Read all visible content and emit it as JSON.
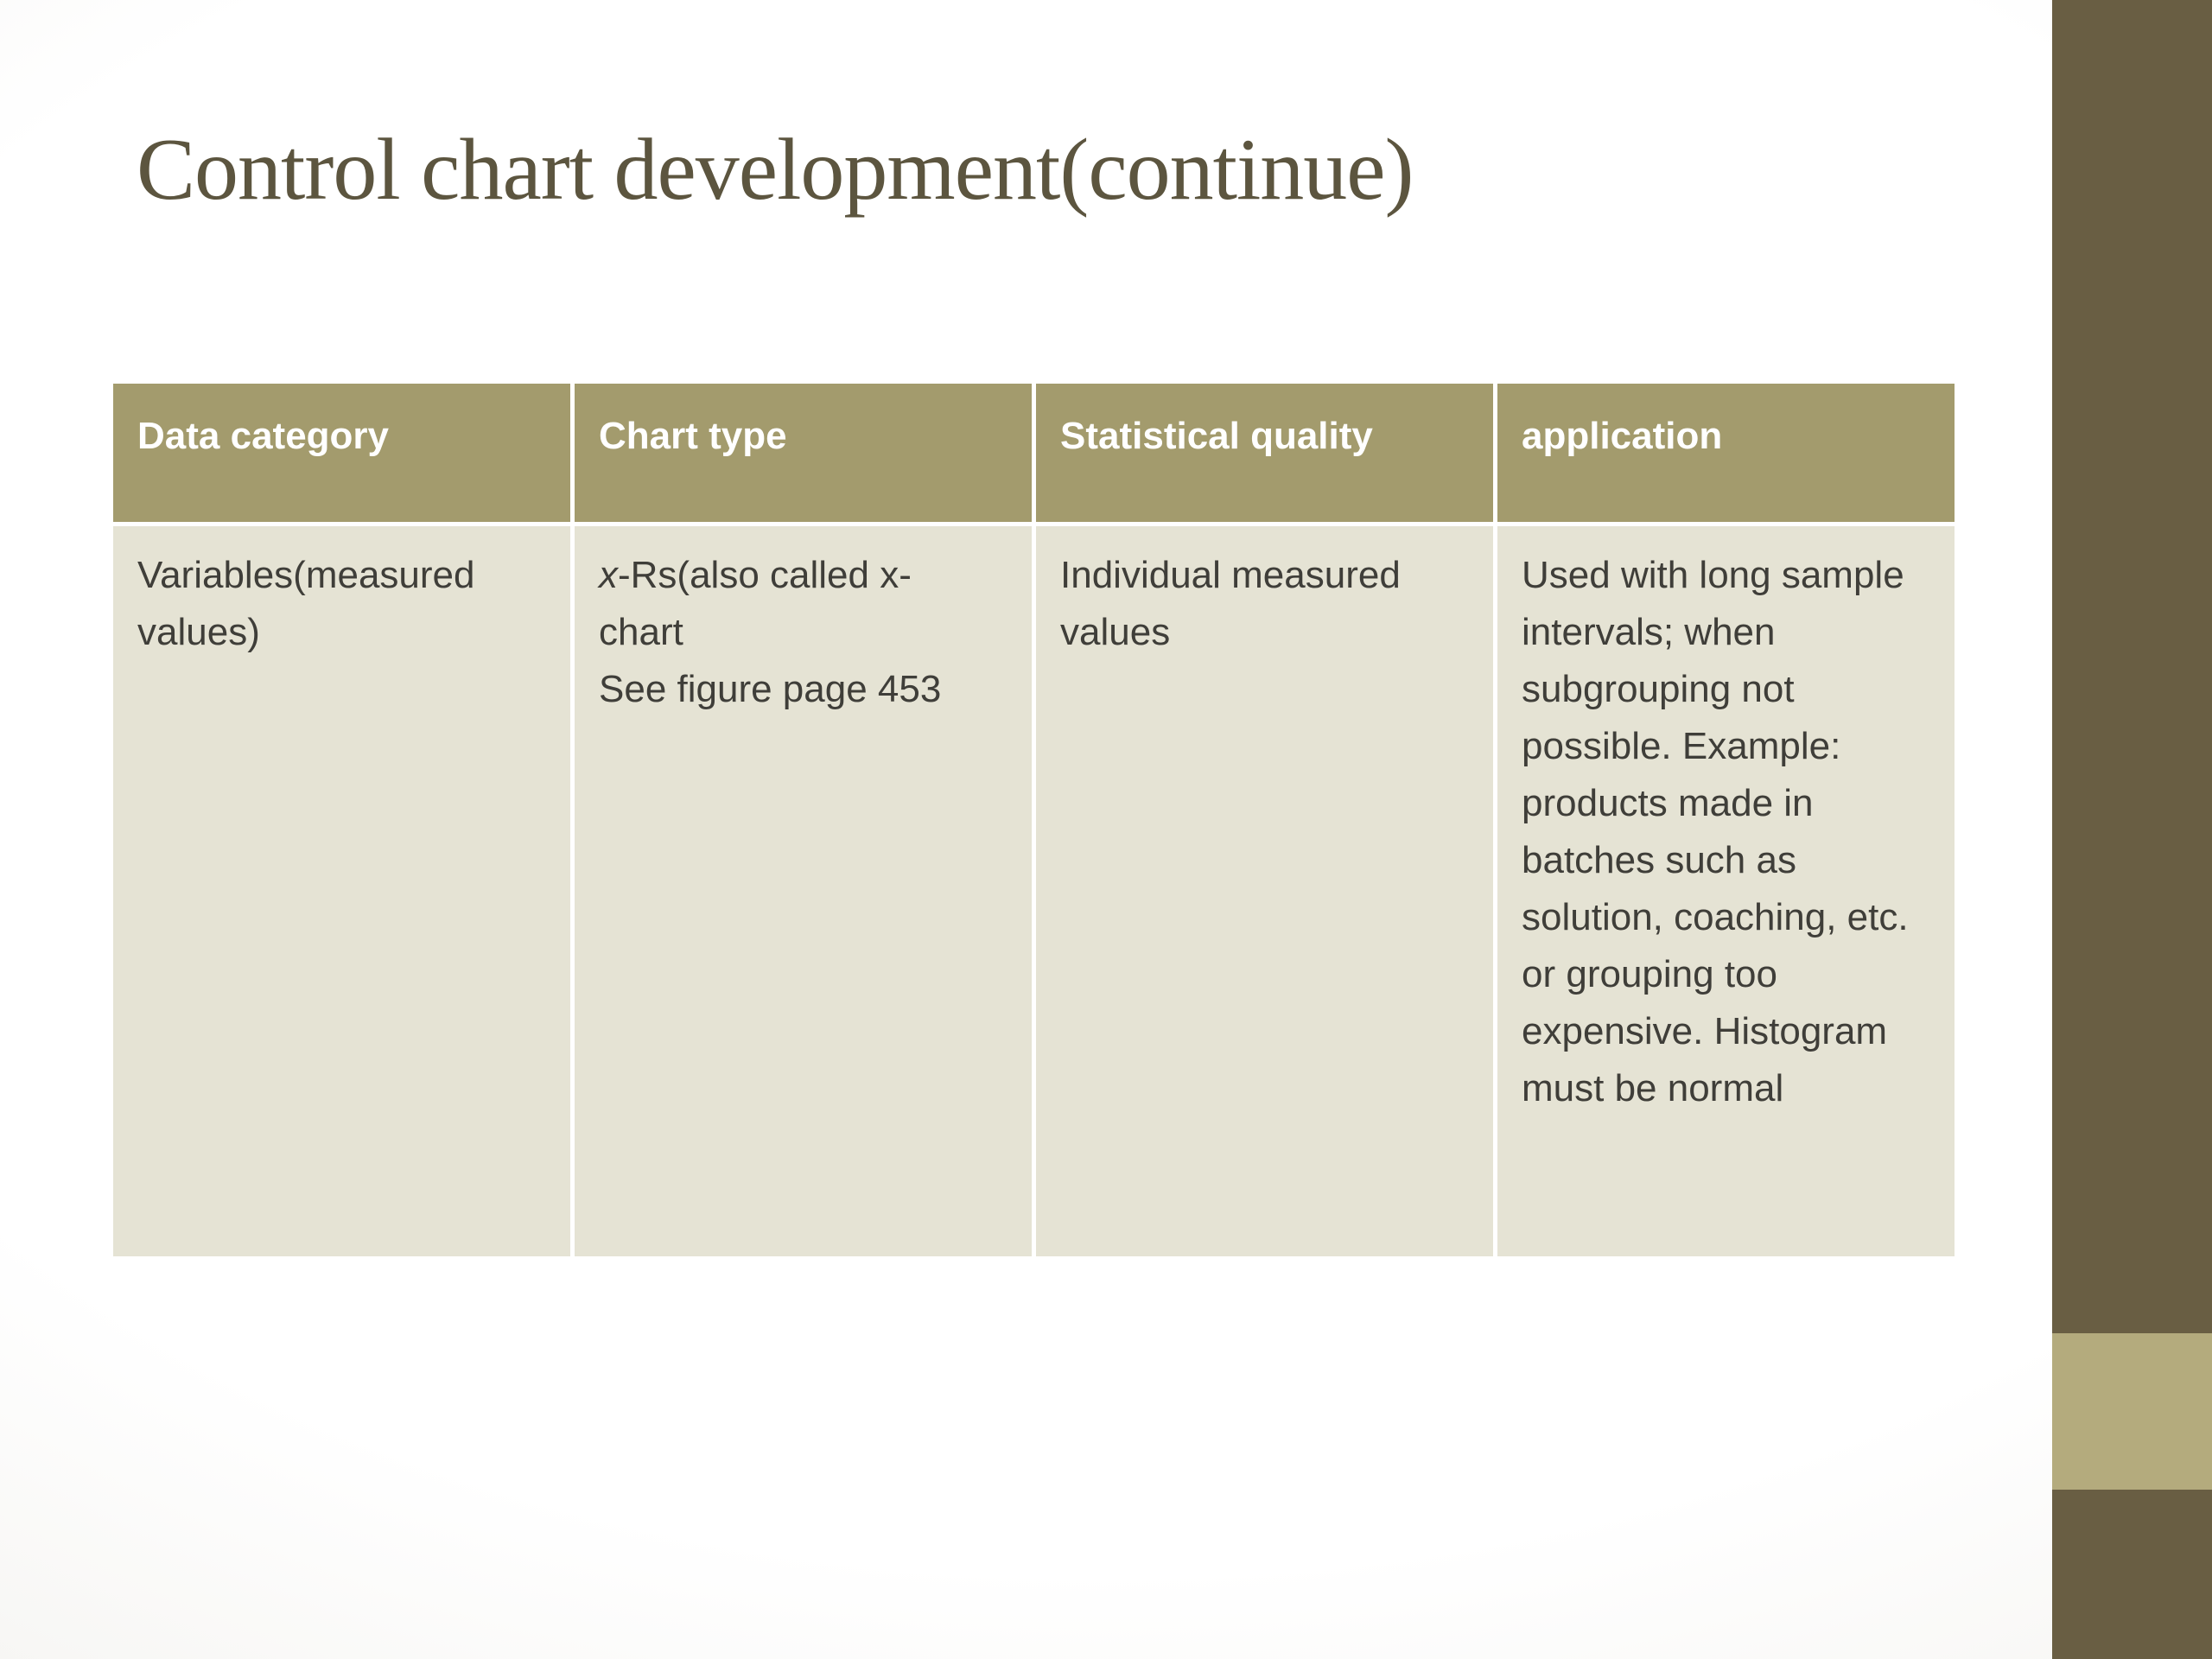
{
  "slide": {
    "title": "Control chart development(continue)"
  },
  "table": {
    "headers": [
      "Data category",
      "Chart type",
      "Statistical quality",
      "application"
    ],
    "rows": [
      {
        "data_category": "Variables(measured values)",
        "chart_type_italic_x": "x",
        "chart_type_line1_rest": "-Rs(also called x-",
        "chart_type_line2": "chart",
        "chart_type_line3": "See figure page 453",
        "statistical_quality": "Individual measured values",
        "application": "Used with long sample intervals; when subgrouping not possible. Example: products made in batches such as solution, coaching, etc. or grouping too expensive. Histogram must be normal"
      }
    ]
  },
  "colors": {
    "header_bg": "#a39b6d",
    "cell_bg": "#e5e3d4",
    "sidebar_dark": "#695e43",
    "sidebar_accent": "#b4ab7d",
    "title_text": "#5c553f",
    "header_text": "#ffffff",
    "body_text": "#3f3e39"
  }
}
